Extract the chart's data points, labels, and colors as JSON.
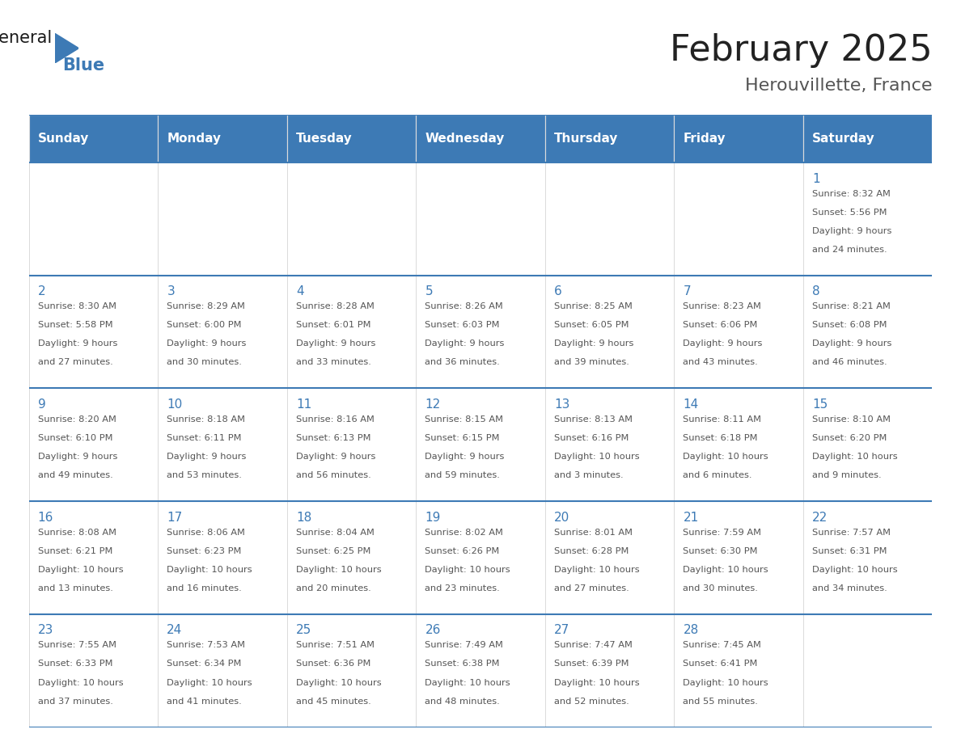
{
  "title": "February 2025",
  "subtitle": "Herouvillette, France",
  "days_of_week": [
    "Sunday",
    "Monday",
    "Tuesday",
    "Wednesday",
    "Thursday",
    "Friday",
    "Saturday"
  ],
  "header_bg": "#3d7ab5",
  "header_text": "#ffffff",
  "cell_bg": "#ffffff",
  "border_color": "#3d7ab5",
  "day_num_color": "#3d7ab5",
  "text_color": "#555555",
  "title_color": "#222222",
  "subtitle_color": "#555555",
  "calendar": [
    [
      null,
      null,
      null,
      null,
      null,
      null,
      {
        "day": 1,
        "sunrise": "8:32 AM",
        "sunset": "5:56 PM",
        "daylight": "9 hours\nand 24 minutes."
      }
    ],
    [
      {
        "day": 2,
        "sunrise": "8:30 AM",
        "sunset": "5:58 PM",
        "daylight": "9 hours\nand 27 minutes."
      },
      {
        "day": 3,
        "sunrise": "8:29 AM",
        "sunset": "6:00 PM",
        "daylight": "9 hours\nand 30 minutes."
      },
      {
        "day": 4,
        "sunrise": "8:28 AM",
        "sunset": "6:01 PM",
        "daylight": "9 hours\nand 33 minutes."
      },
      {
        "day": 5,
        "sunrise": "8:26 AM",
        "sunset": "6:03 PM",
        "daylight": "9 hours\nand 36 minutes."
      },
      {
        "day": 6,
        "sunrise": "8:25 AM",
        "sunset": "6:05 PM",
        "daylight": "9 hours\nand 39 minutes."
      },
      {
        "day": 7,
        "sunrise": "8:23 AM",
        "sunset": "6:06 PM",
        "daylight": "9 hours\nand 43 minutes."
      },
      {
        "day": 8,
        "sunrise": "8:21 AM",
        "sunset": "6:08 PM",
        "daylight": "9 hours\nand 46 minutes."
      }
    ],
    [
      {
        "day": 9,
        "sunrise": "8:20 AM",
        "sunset": "6:10 PM",
        "daylight": "9 hours\nand 49 minutes."
      },
      {
        "day": 10,
        "sunrise": "8:18 AM",
        "sunset": "6:11 PM",
        "daylight": "9 hours\nand 53 minutes."
      },
      {
        "day": 11,
        "sunrise": "8:16 AM",
        "sunset": "6:13 PM",
        "daylight": "9 hours\nand 56 minutes."
      },
      {
        "day": 12,
        "sunrise": "8:15 AM",
        "sunset": "6:15 PM",
        "daylight": "9 hours\nand 59 minutes."
      },
      {
        "day": 13,
        "sunrise": "8:13 AM",
        "sunset": "6:16 PM",
        "daylight": "10 hours\nand 3 minutes."
      },
      {
        "day": 14,
        "sunrise": "8:11 AM",
        "sunset": "6:18 PM",
        "daylight": "10 hours\nand 6 minutes."
      },
      {
        "day": 15,
        "sunrise": "8:10 AM",
        "sunset": "6:20 PM",
        "daylight": "10 hours\nand 9 minutes."
      }
    ],
    [
      {
        "day": 16,
        "sunrise": "8:08 AM",
        "sunset": "6:21 PM",
        "daylight": "10 hours\nand 13 minutes."
      },
      {
        "day": 17,
        "sunrise": "8:06 AM",
        "sunset": "6:23 PM",
        "daylight": "10 hours\nand 16 minutes."
      },
      {
        "day": 18,
        "sunrise": "8:04 AM",
        "sunset": "6:25 PM",
        "daylight": "10 hours\nand 20 minutes."
      },
      {
        "day": 19,
        "sunrise": "8:02 AM",
        "sunset": "6:26 PM",
        "daylight": "10 hours\nand 23 minutes."
      },
      {
        "day": 20,
        "sunrise": "8:01 AM",
        "sunset": "6:28 PM",
        "daylight": "10 hours\nand 27 minutes."
      },
      {
        "day": 21,
        "sunrise": "7:59 AM",
        "sunset": "6:30 PM",
        "daylight": "10 hours\nand 30 minutes."
      },
      {
        "day": 22,
        "sunrise": "7:57 AM",
        "sunset": "6:31 PM",
        "daylight": "10 hours\nand 34 minutes."
      }
    ],
    [
      {
        "day": 23,
        "sunrise": "7:55 AM",
        "sunset": "6:33 PM",
        "daylight": "10 hours\nand 37 minutes."
      },
      {
        "day": 24,
        "sunrise": "7:53 AM",
        "sunset": "6:34 PM",
        "daylight": "10 hours\nand 41 minutes."
      },
      {
        "day": 25,
        "sunrise": "7:51 AM",
        "sunset": "6:36 PM",
        "daylight": "10 hours\nand 45 minutes."
      },
      {
        "day": 26,
        "sunrise": "7:49 AM",
        "sunset": "6:38 PM",
        "daylight": "10 hours\nand 48 minutes."
      },
      {
        "day": 27,
        "sunrise": "7:47 AM",
        "sunset": "6:39 PM",
        "daylight": "10 hours\nand 52 minutes."
      },
      {
        "day": 28,
        "sunrise": "7:45 AM",
        "sunset": "6:41 PM",
        "daylight": "10 hours\nand 55 minutes."
      },
      null
    ]
  ]
}
